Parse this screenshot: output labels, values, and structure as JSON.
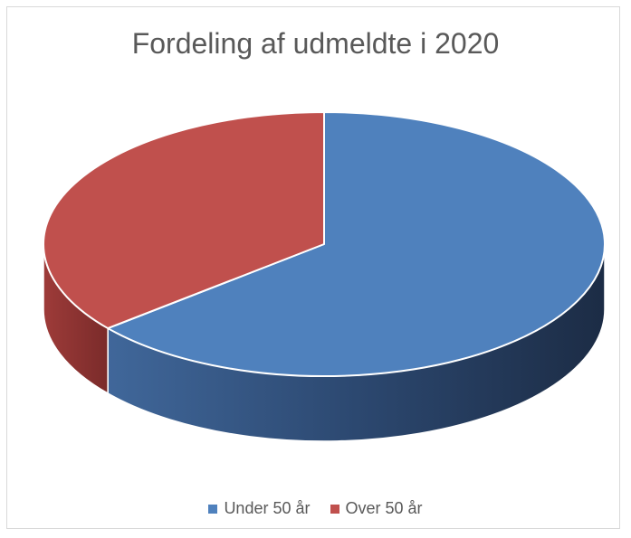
{
  "chart_data": {
    "type": "pie",
    "style": "3d",
    "title": "Fordeling af udmeldte i 2020",
    "slices": [
      {
        "label": "Under 50 år",
        "value": 64,
        "color": "#4f81bd"
      },
      {
        "label": "Over 50 år",
        "value": 36,
        "color": "#c0504d"
      }
    ],
    "legend_position": "bottom"
  }
}
